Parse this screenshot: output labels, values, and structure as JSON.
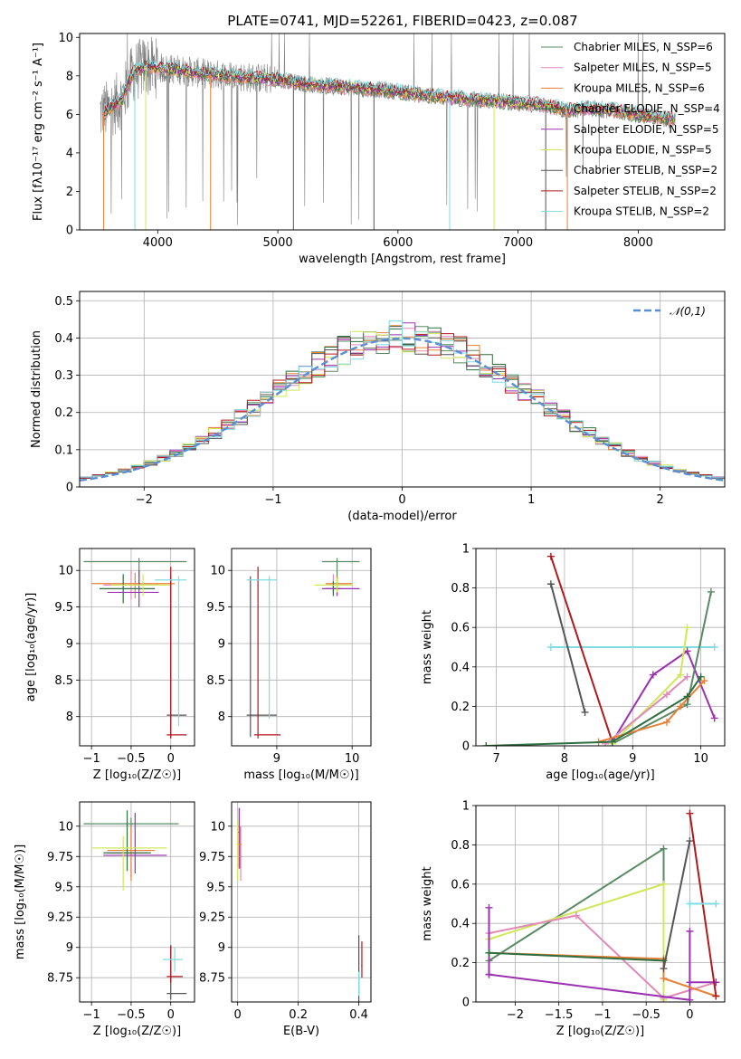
{
  "title": "PLATE=0741, MJD=52261, FIBERID=0423, z=0.087",
  "colors": {
    "chabrier_miles": "#5a8a63",
    "salpeter_miles": "#e08ab8",
    "kroupa_miles": "#e8803a",
    "chabrier_elodie": "#2f6f3f",
    "salpeter_elodie": "#9b30b0",
    "kroupa_elodie": "#cfe85a",
    "chabrier_stelib": "#555555",
    "salpeter_stelib": "#b0191e",
    "kroupa_stelib": "#7fdce0",
    "data": "#808080",
    "normal": "#5b8fd4"
  },
  "chart_data": [
    {
      "id": "spectrum",
      "type": "line",
      "title": "PLATE=0741, MJD=52261, FIBERID=0423, z=0.087",
      "xlabel": "wavelength [Angstrom, rest frame]",
      "ylabel": "Flux [fλ10⁻¹⁷ erg cm⁻² s⁻¹ A⁻¹]",
      "xlim": [
        3350,
        8720
      ],
      "ylim": [
        0,
        10.2
      ],
      "xticks": [
        4000,
        5000,
        6000,
        7000,
        8000
      ],
      "yticks": [
        0,
        2,
        4,
        6,
        8,
        10
      ],
      "legend_position": "top-right",
      "legend": [
        "Chabrier MILES, N_SSP=6",
        "Salpeter MILES, N_SSP=5",
        "Kroupa MILES, N_SSP=6",
        "Chabrier ELODIE, N_SSP=4",
        "Salpeter ELODIE, N_SSP=5",
        "Kroupa ELODIE, N_SSP=5",
        "Chabrier STELIB, N_SSP=2",
        "Salpeter STELIB, N_SSP=2",
        "Kroupa STELIB, N_SSP=2"
      ],
      "model_continuum": {
        "x": [
          3550,
          3600,
          3700,
          3800,
          3900,
          4000,
          4200,
          4400,
          4600,
          4800,
          5000,
          5200,
          5400,
          5600,
          5800,
          6000,
          6200,
          6400,
          6600,
          6800,
          7000,
          7200,
          7400,
          7600,
          7800,
          8000,
          8200,
          8300
        ],
        "y": [
          6.1,
          6.3,
          6.8,
          8.2,
          8.5,
          8.4,
          8.3,
          8.1,
          8.0,
          7.9,
          7.8,
          7.6,
          7.5,
          7.4,
          7.3,
          7.2,
          7.0,
          6.9,
          6.8,
          6.7,
          6.6,
          6.5,
          6.2,
          6.3,
          6.2,
          6.0,
          5.8,
          5.7
        ]
      }
    },
    {
      "id": "residuals",
      "type": "line",
      "xlabel": "(data-model)/error",
      "ylabel": "Normed distribution",
      "xlim": [
        -2.5,
        2.5
      ],
      "ylim": [
        0,
        0.525
      ],
      "xticks": [
        -2,
        -1,
        0,
        1,
        2
      ],
      "yticks": [
        0,
        0.1,
        0.2,
        0.3,
        0.4,
        0.5
      ],
      "grid": true,
      "legend": [
        "𝒩(0,1)"
      ],
      "legend_position": "top-right"
    },
    {
      "id": "age_vs_Z",
      "type": "scatter",
      "xlabel": "Z [log₁₀(Z/Z☉)]",
      "ylabel": "age  [log₁₀(age/yr)]",
      "xlim": [
        -1.15,
        0.3
      ],
      "ylim": [
        7.6,
        10.3
      ],
      "xticks": [
        -1.0,
        -0.5,
        0.0
      ],
      "yticks": [
        8.0,
        8.5,
        9.0,
        9.5,
        10.0
      ],
      "grid": true
    },
    {
      "id": "age_vs_mass",
      "type": "scatter",
      "xlabel": "mass [log₁₀(M/M☉)]",
      "ylabel": "",
      "xlim": [
        8.4,
        10.25
      ],
      "ylim": [
        7.6,
        10.3
      ],
      "xticks": [
        9,
        10
      ],
      "yticks": [
        8.0,
        8.5,
        9.0,
        9.5,
        10.0
      ],
      "grid": true
    },
    {
      "id": "weight_vs_age",
      "type": "line",
      "xlabel": "age  [log₁₀(age/yr)]",
      "ylabel": "mass weight",
      "xlim": [
        6.7,
        10.35
      ],
      "ylim": [
        0,
        1.0
      ],
      "xticks": [
        7,
        8,
        9,
        10
      ],
      "yticks": [
        0,
        0.2,
        0.4,
        0.6,
        0.8,
        1.0
      ],
      "grid": true,
      "series": [
        {
          "color": "kroupa_stelib",
          "x": [
            7.8,
            10.2
          ],
          "y": [
            0.5,
            0.5
          ]
        },
        {
          "color": "salpeter_stelib",
          "x": [
            7.8,
            8.7
          ],
          "y": [
            0.96,
            0.02
          ]
        },
        {
          "color": "chabrier_stelib",
          "x": [
            7.8,
            8.3
          ],
          "y": [
            0.82,
            0.17
          ]
        },
        {
          "color": "salpeter_elodie",
          "x": [
            8.7,
            9.3,
            9.8,
            10.2
          ],
          "y": [
            0.02,
            0.36,
            0.48,
            0.14
          ]
        },
        {
          "color": "chabrier_miles",
          "x": [
            8.7,
            9.8,
            10.15
          ],
          "y": [
            0.01,
            0.21,
            0.78
          ]
        },
        {
          "color": "kroupa_elodie",
          "x": [
            8.7,
            9.7,
            9.8
          ],
          "y": [
            0.01,
            0.36,
            0.6
          ]
        },
        {
          "color": "salpeter_miles",
          "x": [
            8.6,
            9.5,
            9.8
          ],
          "y": [
            0.01,
            0.26,
            0.35
          ]
        },
        {
          "color": "kroupa_miles",
          "x": [
            8.5,
            9.5,
            9.7,
            10.05
          ],
          "y": [
            0.02,
            0.12,
            0.2,
            0.33
          ]
        },
        {
          "color": "chabrier_elodie",
          "x": [
            6.85,
            8.7,
            9.8,
            10.0
          ],
          "y": [
            0.0,
            0.02,
            0.25,
            0.35
          ]
        }
      ]
    },
    {
      "id": "mass_vs_Z",
      "type": "scatter",
      "xlabel": "Z [log₁₀(Z/Z☉)]",
      "ylabel": "mass [log₁₀(M/M☉)]",
      "xlim": [
        -1.15,
        0.3
      ],
      "ylim": [
        8.55,
        10.2
      ],
      "xticks": [
        -1.0,
        -0.5,
        0.0
      ],
      "yticks": [
        8.75,
        9.0,
        9.25,
        9.5,
        9.75,
        10.0
      ],
      "grid": true
    },
    {
      "id": "mass_vs_ebv",
      "type": "scatter",
      "xlabel": "E(B-V)",
      "ylabel": "",
      "xlim": [
        -0.02,
        0.44
      ],
      "ylim": [
        8.55,
        10.2
      ],
      "xticks": [
        0.0,
        0.2,
        0.4
      ],
      "yticks": [
        8.75,
        9.0,
        9.25,
        9.5,
        9.75,
        10.0
      ],
      "grid": true
    },
    {
      "id": "weight_vs_Z",
      "type": "line",
      "xlabel": "Z [log₁₀(Z/Z☉)]",
      "ylabel": "mass weight",
      "xlim": [
        -2.45,
        0.4
      ],
      "ylim": [
        0,
        1.0
      ],
      "xticks": [
        -2.0,
        -1.5,
        -1.0,
        -0.5,
        0.0
      ],
      "yticks": [
        0,
        0.2,
        0.4,
        0.6,
        0.8,
        1.0
      ],
      "grid": true,
      "series": [
        {
          "color": "chabrier_miles",
          "x": [
            -2.3,
            -0.3,
            -0.3
          ],
          "y": [
            0.21,
            0.78,
            0.02
          ]
        },
        {
          "color": "kroupa_elodie",
          "x": [
            -2.3,
            -0.3,
            -0.3
          ],
          "y": [
            0.32,
            0.6,
            0.01
          ]
        },
        {
          "color": "salpeter_miles",
          "x": [
            -2.3,
            -1.3,
            -0.3,
            0.3
          ],
          "y": [
            0.35,
            0.44,
            0.02,
            0.1
          ]
        },
        {
          "color": "salpeter_elodie",
          "x": [
            -2.3,
            -2.3,
            -2.3,
            0.0,
            0.0,
            0.0,
            0.3
          ],
          "y": [
            0.48,
            0.14,
            0.14,
            0.01,
            0.36,
            0.1,
            0.1
          ]
        },
        {
          "color": "kroupa_miles",
          "x": [
            -2.3,
            -0.3,
            -0.3,
            0.3
          ],
          "y": [
            0.25,
            0.22,
            0.12,
            0.03
          ]
        },
        {
          "color": "chabrier_stelib",
          "x": [
            -0.3,
            0.0
          ],
          "y": [
            0.17,
            0.82
          ]
        },
        {
          "color": "salpeter_stelib",
          "x": [
            0.0,
            0.3
          ],
          "y": [
            0.96,
            0.03
          ]
        },
        {
          "color": "kroupa_stelib",
          "x": [
            0.0,
            0.3
          ],
          "y": [
            0.5,
            0.5
          ]
        },
        {
          "color": "chabrier_elodie",
          "x": [
            -2.3,
            -0.3
          ],
          "y": [
            0.25,
            0.21
          ]
        }
      ]
    }
  ]
}
